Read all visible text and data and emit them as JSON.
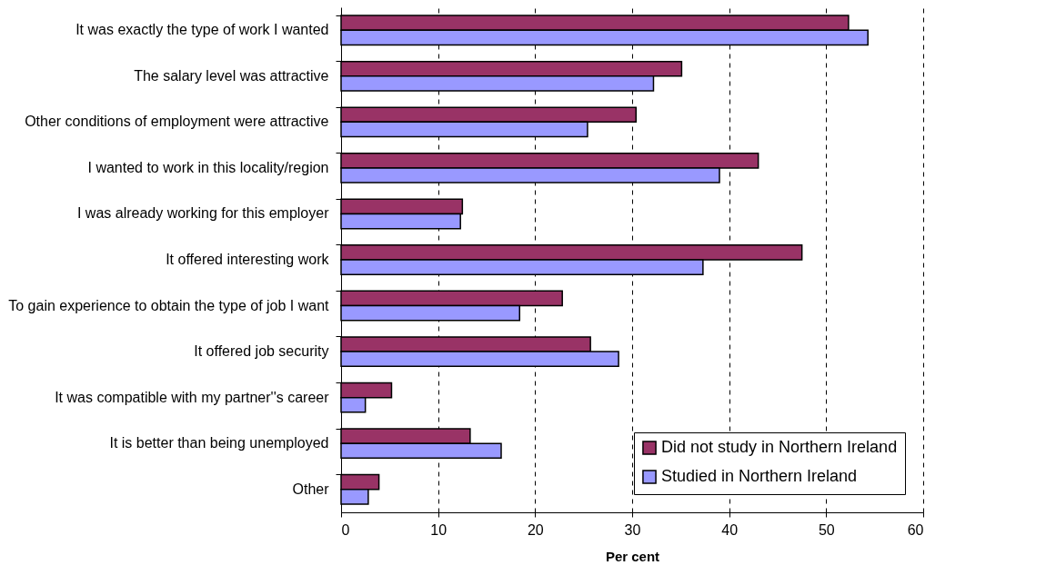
{
  "chart_data": {
    "type": "bar",
    "orientation": "horizontal",
    "xlabel": "Per cent",
    "categories": [
      "It was exactly the type of work I wanted",
      "The salary level was attractive",
      "Other conditions of employment were attractive",
      "I wanted to work in this locality/region",
      "I was already working for this employer",
      "It offered interesting work",
      "To gain experience to obtain the type of job I want",
      "It offered job security",
      "It was compatible with my partner''s career",
      "It is better than being unemployed",
      "Other"
    ],
    "series": [
      {
        "name": "Did not study in Northern Ireland",
        "color": "#993366",
        "values": [
          52.3,
          35.1,
          30.4,
          43.0,
          12.5,
          47.5,
          22.8,
          25.7,
          5.2,
          13.3,
          3.9
        ]
      },
      {
        "name": "Studied in Northern Ireland",
        "color": "#9999ff",
        "values": [
          54.3,
          32.2,
          25.4,
          39.0,
          12.3,
          37.3,
          18.4,
          28.6,
          2.5,
          16.5,
          2.8
        ]
      }
    ],
    "xlim": [
      0,
      60
    ],
    "xticks": [
      0,
      10,
      20,
      30,
      40,
      50,
      60
    ],
    "grid": "x",
    "legend": "bottom right"
  }
}
